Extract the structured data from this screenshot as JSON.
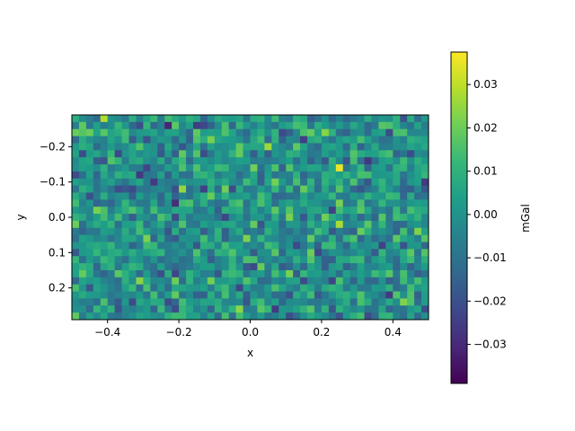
{
  "chart_data": {
    "type": "heatmap",
    "title": "",
    "xlabel": "x",
    "ylabel": "y",
    "xlim": [
      -0.5,
      0.5
    ],
    "ylim": [
      0.29,
      -0.29
    ],
    "y_axis_inverted": true,
    "x_ticks": [
      "−0.4",
      "−0.2",
      "0.0",
      "0.2",
      "0.4"
    ],
    "x_tick_values": [
      -0.4,
      -0.2,
      0.0,
      0.2,
      0.4
    ],
    "y_ticks": [
      "−0.2",
      "−0.1",
      "0.0",
      "0.1",
      "0.2"
    ],
    "y_tick_values": [
      -0.2,
      -0.1,
      0.0,
      0.1,
      0.2
    ],
    "grid_cols": 50,
    "grid_rows": 29,
    "value_range": [
      -0.039,
      0.0375
    ],
    "colormap": "viridis",
    "colorbar": {
      "label": "mGal",
      "ticks": [
        "−0.03",
        "−0.02",
        "−0.01",
        "0.00",
        "0.01",
        "0.02",
        "0.03"
      ],
      "tick_values": [
        -0.03,
        -0.02,
        -0.01,
        0.0,
        0.01,
        0.02,
        0.03
      ]
    },
    "grid": false,
    "note_values": "random noise field, approx. normal with mean 0.00 and std 0.01 mGal"
  },
  "colors": {
    "viridis": [
      "#440154",
      "#482878",
      "#3e4989",
      "#31688e",
      "#26828e",
      "#1f9e89",
      "#35b779",
      "#6ece58",
      "#b5de2b",
      "#fde725"
    ]
  }
}
